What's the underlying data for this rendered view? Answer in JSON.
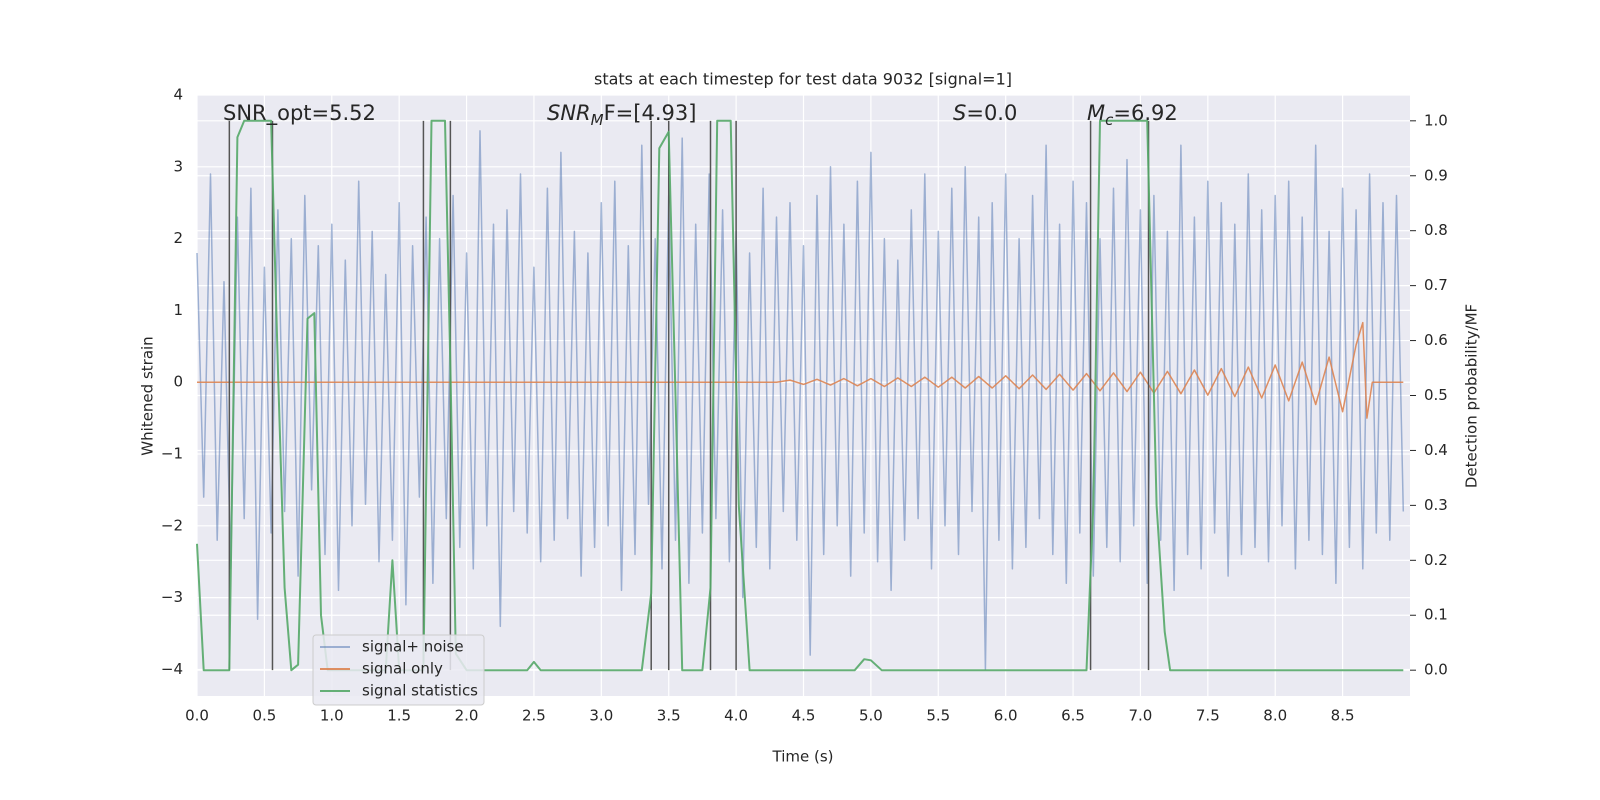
{
  "chart_data": {
    "type": "line",
    "title": "stats at each timestep for test data 9032 [signal=1]",
    "xlabel": "Time (s)",
    "ylabel": "Whitened strain",
    "y2label": "Detection probability/MF",
    "xlim": [
      0,
      9.0
    ],
    "ylim": [
      -4.37,
      4
    ],
    "y2lim": [
      -0.047,
      1.047
    ],
    "xticks": [
      {
        "value": 0,
        "label": "0.0"
      },
      0.5,
      {
        "value": 1,
        "label": "1.0"
      },
      1.5,
      {
        "value": 2,
        "label": "2.0"
      },
      2.5,
      {
        "value": 3,
        "label": "3.0"
      },
      3.5,
      {
        "value": 4,
        "label": "4.0"
      },
      4.5,
      {
        "value": 5,
        "label": "5.0"
      },
      5.5,
      {
        "value": 6,
        "label": "6.0"
      },
      6.5,
      {
        "value": 7,
        "label": "7.0"
      },
      7.5,
      {
        "value": 8,
        "label": "8.0"
      },
      8.5
    ],
    "yticks": [
      {
        "value": -4,
        "label": "−4"
      },
      {
        "value": -3,
        "label": "−3"
      },
      {
        "value": -2,
        "label": "−2"
      },
      {
        "value": -1,
        "label": "−1"
      },
      0,
      1,
      2,
      3,
      4
    ],
    "y2ticks": [
      {
        "value": 0,
        "label": "0.0"
      },
      0.1,
      0.2,
      0.3,
      0.4,
      0.5,
      0.6,
      0.7,
      0.8,
      0.9,
      {
        "value": 1,
        "label": "1.0"
      }
    ],
    "grid": true,
    "annotations": [
      {
        "text": "SNR_opt=5.52"
      },
      {
        "text": "SNR",
        "sub": "M",
        "rest": "F=[4.93]"
      },
      {
        "text": "S",
        "rest": "=0.0"
      },
      {
        "text": "M",
        "sub": "c",
        "rest": "=6.92"
      }
    ],
    "vlines": [
      0.24,
      0.56,
      1.68,
      1.88,
      3.37,
      3.5,
      3.81,
      4.0,
      6.63,
      7.06
    ],
    "vline_color": "#555555",
    "series": [
      {
        "name": "signal+ noise",
        "color": "#4c72b0",
        "x": [
          0,
          0.05,
          0.1,
          0.15,
          0.2,
          0.25,
          0.3,
          0.35,
          0.4,
          0.45,
          0.5,
          0.55,
          0.6,
          0.65,
          0.7,
          0.75,
          0.8,
          0.85,
          0.9,
          0.95,
          1,
          1.05,
          1.1,
          1.15,
          1.2,
          1.25,
          1.3,
          1.35,
          1.4,
          1.45,
          1.5,
          1.55,
          1.6,
          1.65,
          1.7,
          1.75,
          1.8,
          1.85,
          1.9,
          1.95,
          2,
          2.05,
          2.1,
          2.15,
          2.2,
          2.25,
          2.3,
          2.35,
          2.4,
          2.45,
          2.5,
          2.55,
          2.6,
          2.65,
          2.7,
          2.75,
          2.8,
          2.85,
          2.9,
          2.95,
          3,
          3.05,
          3.1,
          3.15,
          3.2,
          3.25,
          3.3,
          3.35,
          3.4,
          3.45,
          3.5,
          3.55,
          3.6,
          3.65,
          3.7,
          3.75,
          3.8,
          3.85,
          3.9,
          3.95,
          4,
          4.05,
          4.1,
          4.15,
          4.2,
          4.25,
          4.3,
          4.35,
          4.4,
          4.45,
          4.5,
          4.55,
          4.6,
          4.65,
          4.7,
          4.75,
          4.8,
          4.85,
          4.9,
          4.95,
          5,
          5.05,
          5.1,
          5.15,
          5.2,
          5.25,
          5.3,
          5.35,
          5.4,
          5.45,
          5.5,
          5.55,
          5.6,
          5.65,
          5.7,
          5.75,
          5.8,
          5.85,
          5.9,
          5.95,
          6,
          6.05,
          6.1,
          6.15,
          6.2,
          6.25,
          6.3,
          6.35,
          6.4,
          6.45,
          6.5,
          6.55,
          6.6,
          6.65,
          6.7,
          6.75,
          6.8,
          6.85,
          6.9,
          6.95,
          7,
          7.05,
          7.1,
          7.15,
          7.2,
          7.25,
          7.3,
          7.35,
          7.4,
          7.45,
          7.5,
          7.55,
          7.6,
          7.65,
          7.7,
          7.75,
          7.8,
          7.85,
          7.9,
          7.95,
          8,
          8.05,
          8.1,
          8.15,
          8.2,
          8.25,
          8.3,
          8.35,
          8.4,
          8.45,
          8.5,
          8.55,
          8.6,
          8.65,
          8.7,
          8.75,
          8.8,
          8.85,
          8.9,
          8.95
        ],
        "values": [
          1.8,
          -1.6,
          2.9,
          -2.2,
          1.4,
          -2.6,
          2.3,
          -1.9,
          2.7,
          -3.3,
          1.6,
          -2.1,
          2.4,
          -1.8,
          2.0,
          -2.7,
          2.6,
          -1.5,
          1.9,
          -2.4,
          2.2,
          -2.9,
          1.7,
          -2.0,
          2.8,
          -1.7,
          2.1,
          -2.5,
          1.5,
          -2.2,
          2.5,
          -3.1,
          1.9,
          -1.6,
          2.3,
          -2.8,
          2.0,
          -1.9,
          2.6,
          -2.3,
          1.8,
          -2.6,
          3.5,
          -2.0,
          2.2,
          -3.4,
          2.4,
          -1.8,
          2.9,
          -2.1,
          1.6,
          -2.5,
          2.7,
          -2.2,
          3.2,
          -1.9,
          2.1,
          -2.7,
          1.8,
          -2.3,
          2.5,
          -2.0,
          2.8,
          -2.9,
          1.9,
          -2.4,
          3.3,
          -1.7,
          2.0,
          -2.6,
          2.6,
          -2.2,
          3.4,
          -2.8,
          2.2,
          -2.1,
          2.9,
          -1.9,
          2.4,
          -2.5,
          2.1,
          -3.0,
          1.8,
          -2.3,
          2.7,
          -2.6,
          2.3,
          -1.8,
          2.5,
          -2.2,
          1.9,
          -3.8,
          2.6,
          -2.4,
          3.0,
          -2.0,
          2.2,
          -2.7,
          2.8,
          -2.1,
          3.2,
          -2.5,
          2.0,
          -2.9,
          1.7,
          -2.2,
          2.4,
          -1.9,
          2.9,
          -2.6,
          2.1,
          -2.0,
          2.7,
          -2.4,
          3.0,
          -1.8,
          2.3,
          -4.0,
          2.5,
          -2.2,
          2.9,
          -2.6,
          2.0,
          -2.3,
          2.6,
          -1.9,
          3.3,
          -2.4,
          2.2,
          -2.8,
          2.8,
          -2.1,
          2.5,
          -2.7,
          2.0,
          -2.3,
          2.7,
          -2.5,
          3.1,
          -2.0,
          2.4,
          -2.8,
          2.6,
          -2.2,
          2.1,
          -2.9,
          3.3,
          -2.4,
          2.3,
          -2.6,
          2.8,
          -2.1,
          2.5,
          -2.7,
          2.2,
          -2.4,
          2.9,
          -2.3,
          2.4,
          -2.5,
          2.6,
          -2.0,
          2.8,
          -2.6,
          2.3,
          -2.2,
          3.3,
          -2.4,
          2.1,
          -2.8,
          2.7,
          -2.3,
          2.4,
          -2.6,
          2.9,
          -2.1,
          2.5,
          -2.2,
          2.6,
          -1.8
        ]
      },
      {
        "name": "signal only",
        "color": "#dd8452",
        "x": [
          0,
          4.3,
          4.4,
          4.5,
          4.6,
          4.7,
          4.8,
          4.9,
          5.0,
          5.1,
          5.2,
          5.3,
          5.4,
          5.5,
          5.6,
          5.7,
          5.8,
          5.9,
          6.0,
          6.1,
          6.2,
          6.3,
          6.4,
          6.5,
          6.6,
          6.7,
          6.8,
          6.9,
          7.0,
          7.1,
          7.2,
          7.3,
          7.4,
          7.5,
          7.6,
          7.7,
          7.8,
          7.9,
          8.0,
          8.1,
          8.2,
          8.3,
          8.4,
          8.5,
          8.6,
          8.65,
          8.68,
          8.72,
          8.95
        ],
        "values": [
          0,
          0,
          0.03,
          -0.03,
          0.04,
          -0.04,
          0.05,
          -0.05,
          0.05,
          -0.06,
          0.06,
          -0.06,
          0.07,
          -0.07,
          0.07,
          -0.08,
          0.08,
          -0.08,
          0.09,
          -0.09,
          0.1,
          -0.1,
          0.11,
          -0.11,
          0.12,
          -0.12,
          0.13,
          -0.13,
          0.14,
          -0.15,
          0.15,
          -0.16,
          0.17,
          -0.18,
          0.19,
          -0.2,
          0.21,
          -0.22,
          0.24,
          -0.26,
          0.28,
          -0.31,
          0.35,
          -0.41,
          0.52,
          0.83,
          -0.5,
          0,
          0
        ]
      },
      {
        "name": "signal statistics",
        "color": "#55a868",
        "axis": "y2",
        "x": [
          0,
          0.05,
          0.24,
          0.3,
          0.35,
          0.55,
          0.6,
          0.65,
          0.7,
          0.75,
          0.82,
          0.87,
          0.92,
          0.97,
          1.4,
          1.45,
          1.5,
          1.68,
          1.74,
          1.84,
          1.88,
          1.92,
          2.0,
          2.45,
          2.5,
          2.55,
          3.3,
          3.37,
          3.43,
          3.5,
          3.55,
          3.6,
          3.75,
          3.81,
          3.86,
          3.96,
          4.02,
          4.1,
          4.88,
          4.95,
          5.0,
          5.08,
          6.6,
          6.65,
          6.7,
          7.05,
          7.12,
          7.18,
          7.22,
          8.95
        ],
        "values": [
          0.23,
          0,
          0,
          0.97,
          1,
          1,
          0.55,
          0.15,
          0,
          0.01,
          0.64,
          0.65,
          0.1,
          0,
          0,
          0.2,
          0,
          0,
          1,
          1,
          0.55,
          0.03,
          0,
          0,
          0.015,
          0,
          0,
          0.14,
          0.95,
          0.98,
          0.5,
          0,
          0,
          0.15,
          1,
          1,
          0.3,
          0,
          0,
          0.02,
          0.018,
          0,
          0,
          0.3,
          1,
          1,
          0.3,
          0.07,
          0,
          0
        ]
      }
    ]
  }
}
